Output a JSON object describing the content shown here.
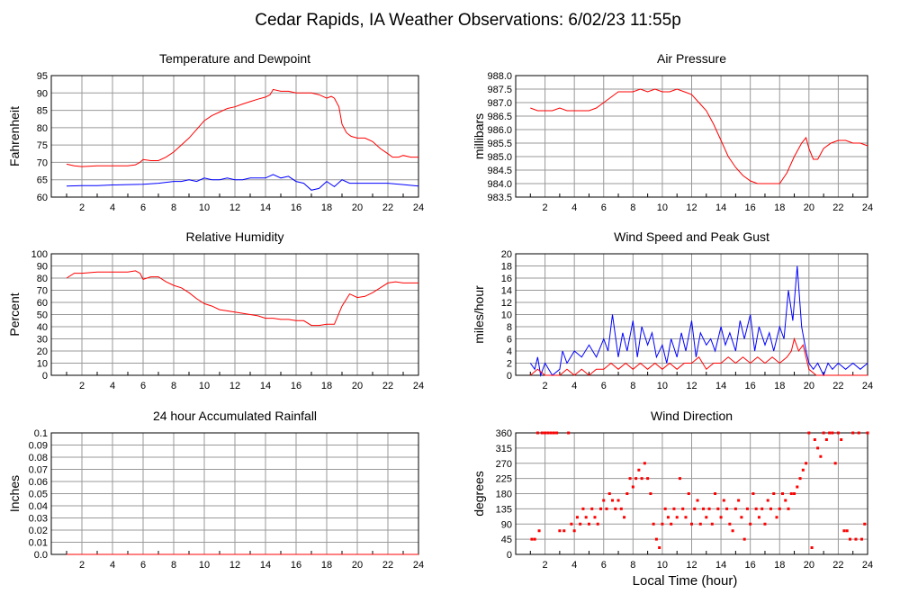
{
  "page_title": "Cedar Rapids, IA Weather Observations: 6/02/23 11:55p",
  "x_axis_label": "Local Time (hour)",
  "colors": {
    "red": "#ff0000",
    "blue": "#0000ff",
    "grid": "#999999"
  },
  "chart_data": [
    {
      "id": "temperature",
      "type": "line",
      "title": "Temperature and Dewpoint",
      "xlabel": "",
      "ylabel": "Fahrenheit",
      "xlim": [
        0,
        24
      ],
      "ylim": [
        60,
        95
      ],
      "xticks": [
        "2",
        "4",
        "6",
        "8",
        "10",
        "12",
        "14",
        "16",
        "18",
        "20",
        "22",
        "24"
      ],
      "yticks": [
        "60",
        "65",
        "70",
        "75",
        "80",
        "85",
        "90",
        "95"
      ],
      "grid": true,
      "series": [
        {
          "color": "#ff0000",
          "x": [
            1,
            1.5,
            2,
            3,
            4,
            5,
            5.5,
            5.8,
            6,
            6.5,
            7,
            7.5,
            8,
            8.5,
            9,
            9.5,
            10,
            10.5,
            11,
            11.5,
            12,
            12.5,
            13,
            13.5,
            14,
            14.3,
            14.5,
            15,
            15.5,
            16,
            16.5,
            17,
            17.5,
            18,
            18.3,
            18.5,
            18.8,
            19,
            19.3,
            19.6,
            20,
            20.5,
            21,
            21.5,
            22,
            22.3,
            22.7,
            23,
            23.5,
            24
          ],
          "y": [
            69.5,
            69,
            68.8,
            69,
            69,
            69,
            69.3,
            70,
            70.8,
            70.5,
            70.5,
            71.5,
            73,
            75,
            77,
            79.5,
            82,
            83.5,
            84.5,
            85.5,
            86,
            86.8,
            87.5,
            88.2,
            88.8,
            89.5,
            91,
            90.5,
            90.5,
            90,
            90,
            90,
            89.5,
            88.5,
            89,
            88.5,
            86,
            81,
            78.5,
            77.5,
            77,
            77,
            76,
            74,
            72.5,
            71.5,
            71.5,
            72,
            71.5,
            71.5
          ]
        },
        {
          "color": "#0000ff",
          "x": [
            1,
            2,
            3,
            4,
            5,
            6,
            7,
            8,
            8.5,
            9,
            9.5,
            10,
            10.5,
            11,
            11.5,
            12,
            12.5,
            13,
            13.5,
            14,
            14.5,
            15,
            15.5,
            16,
            16.5,
            17,
            17.5,
            18,
            18.5,
            19,
            19.5,
            20,
            21,
            22,
            23,
            24
          ],
          "y": [
            63.2,
            63.3,
            63.3,
            63.5,
            63.6,
            63.7,
            64,
            64.5,
            64.5,
            65,
            64.5,
            65.5,
            65,
            65,
            65.5,
            65,
            65,
            65.5,
            65.5,
            65.5,
            66.5,
            65.5,
            66,
            64.5,
            64,
            62,
            62.5,
            64.5,
            63,
            65,
            64,
            64,
            64,
            64,
            63.6,
            63.2
          ]
        }
      ]
    },
    {
      "id": "pressure",
      "type": "line",
      "title": "Air Pressure",
      "xlabel": "",
      "ylabel": "millibars",
      "xlim": [
        0,
        24
      ],
      "ylim": [
        983.5,
        988.0
      ],
      "xticks": [
        "2",
        "4",
        "6",
        "8",
        "10",
        "12",
        "14",
        "16",
        "18",
        "20",
        "22",
        "24"
      ],
      "yticks": [
        "983.5",
        "984.0",
        "984.5",
        "985.0",
        "985.5",
        "986.0",
        "986.5",
        "987.0",
        "987.5",
        "988.0"
      ],
      "grid": true,
      "series": [
        {
          "color": "#ff0000",
          "x": [
            1,
            1.5,
            2,
            2.5,
            3,
            3.5,
            4,
            5,
            5.5,
            6,
            6.5,
            7,
            7.5,
            8,
            8.5,
            9,
            9.5,
            10,
            10.5,
            11,
            11.5,
            12,
            12.5,
            13,
            13.5,
            14,
            14.5,
            15,
            15.5,
            16,
            16.5,
            17,
            17.5,
            18,
            18.5,
            19,
            19.5,
            19.8,
            20,
            20.3,
            20.6,
            21,
            21.5,
            22,
            22.5,
            23,
            23.5,
            24
          ],
          "y": [
            986.8,
            986.7,
            986.7,
            986.7,
            986.8,
            986.7,
            986.7,
            986.7,
            986.8,
            987.0,
            987.2,
            987.4,
            987.4,
            987.4,
            987.5,
            987.4,
            987.5,
            987.4,
            987.4,
            987.5,
            987.4,
            987.3,
            987.0,
            986.7,
            986.2,
            985.6,
            985.0,
            984.6,
            984.3,
            984.1,
            984.0,
            984.0,
            984.0,
            984.0,
            984.4,
            985.0,
            985.5,
            985.7,
            985.3,
            984.9,
            984.9,
            985.3,
            985.5,
            985.6,
            985.6,
            985.5,
            985.5,
            985.4
          ]
        }
      ]
    },
    {
      "id": "humidity",
      "type": "line",
      "title": "Relative Humidity",
      "xlabel": "",
      "ylabel": "Percent",
      "xlim": [
        0,
        24
      ],
      "ylim": [
        0,
        100
      ],
      "xticks": [
        "2",
        "4",
        "6",
        "8",
        "10",
        "12",
        "14",
        "16",
        "18",
        "20",
        "22",
        "24"
      ],
      "yticks": [
        "0",
        "10",
        "20",
        "30",
        "40",
        "50",
        "60",
        "70",
        "80",
        "90",
        "100"
      ],
      "grid": true,
      "series": [
        {
          "color": "#ff0000",
          "x": [
            1,
            1.5,
            2,
            3,
            4,
            5,
            5.5,
            5.8,
            6,
            6.5,
            7,
            7.5,
            8,
            8.5,
            9,
            9.5,
            10,
            10.5,
            11,
            11.5,
            12,
            12.5,
            13,
            13.5,
            14,
            14.5,
            15,
            15.5,
            16,
            16.5,
            17,
            17.5,
            18,
            18.5,
            19,
            19.5,
            20,
            20.5,
            21,
            21.5,
            22,
            22.5,
            23,
            24
          ],
          "y": [
            80,
            84,
            84,
            85,
            85,
            85,
            86,
            84,
            79,
            81,
            81,
            77,
            74,
            72,
            68,
            63,
            59,
            57,
            54,
            53,
            52,
            51,
            50,
            49,
            47,
            47,
            46,
            46,
            45,
            45,
            41,
            41,
            42,
            42,
            57,
            67,
            64,
            65,
            68,
            72,
            76,
            77,
            76,
            76
          ]
        }
      ]
    },
    {
      "id": "wind",
      "type": "line",
      "title": "Wind Speed and Peak Gust",
      "xlabel": "",
      "ylabel": "miles/hour",
      "xlim": [
        0,
        24
      ],
      "ylim": [
        0,
        20
      ],
      "xticks": [
        "2",
        "4",
        "6",
        "8",
        "10",
        "12",
        "14",
        "16",
        "18",
        "20",
        "22",
        "24"
      ],
      "yticks": [
        "0",
        "2",
        "4",
        "6",
        "8",
        "10",
        "12",
        "14",
        "16",
        "18",
        "20"
      ],
      "grid": true,
      "series": [
        {
          "color": "#0000ff",
          "x": [
            1,
            1.3,
            1.5,
            1.7,
            2,
            2.5,
            3,
            3.2,
            3.5,
            4,
            4.5,
            5,
            5.5,
            6,
            6.3,
            6.6,
            7,
            7.3,
            7.6,
            8,
            8.3,
            8.6,
            9,
            9.3,
            9.6,
            10,
            10.3,
            10.6,
            11,
            11.3,
            11.6,
            12,
            12.3,
            12.6,
            13,
            13.3,
            13.6,
            14,
            14.3,
            14.6,
            15,
            15.3,
            15.6,
            16,
            16.3,
            16.6,
            17,
            17.3,
            17.6,
            18,
            18.3,
            18.6,
            18.9,
            19.2,
            19.5,
            19.8,
            20,
            20.3,
            20.6,
            21,
            21.3,
            21.6,
            22,
            22.5,
            23,
            23.5,
            24
          ],
          "y": [
            2,
            1,
            3,
            0,
            2,
            0,
            1,
            4,
            2,
            4,
            3,
            5,
            3,
            6,
            4,
            10,
            3,
            7,
            4,
            9,
            3,
            8,
            5,
            7,
            3,
            5,
            2,
            6,
            3,
            7,
            4,
            9,
            3,
            7,
            5,
            6,
            4,
            8,
            5,
            7,
            4,
            9,
            6,
            10,
            4,
            8,
            5,
            7,
            4,
            8,
            6,
            14,
            9,
            18,
            8,
            4,
            2,
            1,
            2,
            0,
            2,
            1,
            2,
            1,
            2,
            1,
            2
          ]
        },
        {
          "color": "#ff0000",
          "x": [
            1,
            1.5,
            2,
            2.5,
            3,
            3.5,
            4,
            4.5,
            5,
            5.5,
            6,
            6.5,
            7,
            7.5,
            8,
            8.5,
            9,
            9.5,
            10,
            10.5,
            11,
            11.5,
            12,
            12.5,
            13,
            13.5,
            14,
            14.5,
            15,
            15.5,
            16,
            16.5,
            17,
            17.5,
            18,
            18.5,
            18.8,
            19,
            19.3,
            19.6,
            20,
            20.5,
            21,
            21.5,
            22,
            23,
            24
          ],
          "y": [
            0,
            1,
            0,
            0,
            0,
            1,
            0,
            1,
            0,
            1,
            1,
            2,
            1,
            2,
            1,
            2,
            1,
            2,
            1,
            2,
            1,
            2,
            2,
            3,
            1,
            2,
            2,
            3,
            2,
            3,
            2,
            3,
            2,
            3,
            2,
            3,
            4,
            6,
            4,
            5,
            1,
            0,
            0,
            0,
            0,
            0,
            0
          ]
        }
      ]
    },
    {
      "id": "rainfall",
      "type": "line",
      "title": "24 hour Accumulated Rainfall",
      "xlabel": "",
      "ylabel": "Inches",
      "xlim": [
        0,
        24
      ],
      "ylim": [
        0,
        0.1
      ],
      "xticks": [
        "2",
        "4",
        "6",
        "8",
        "10",
        "12",
        "14",
        "16",
        "18",
        "20",
        "22",
        "24"
      ],
      "yticks": [
        "0.0",
        "0.01",
        "0.02",
        "0.03",
        "0.04",
        "0.05",
        "0.06",
        "0.07",
        "0.08",
        "0.09",
        "0.1"
      ],
      "grid": true,
      "series": [
        {
          "color": "#ff0000",
          "x": [
            1,
            24
          ],
          "y": [
            0,
            0
          ]
        }
      ]
    },
    {
      "id": "direction",
      "type": "scatter",
      "title": "Wind Direction",
      "xlabel": "Local Time (hour)",
      "ylabel": "degrees",
      "xlim": [
        0,
        24
      ],
      "ylim": [
        0,
        360
      ],
      "xticks": [
        "2",
        "4",
        "6",
        "8",
        "10",
        "12",
        "14",
        "16",
        "18",
        "20",
        "22",
        "24"
      ],
      "yticks": [
        "0",
        "45",
        "90",
        "135",
        "180",
        "225",
        "270",
        "315",
        "360"
      ],
      "grid": true,
      "series": [
        {
          "color": "#ff0000",
          "x": [
            1.1,
            1.3,
            1.5,
            1.6,
            1.8,
            2,
            2.2,
            2.4,
            2.6,
            2.8,
            3,
            3.3,
            3.6,
            3.8,
            4,
            4.2,
            4.4,
            4.6,
            4.8,
            5,
            5.2,
            5.4,
            5.6,
            5.8,
            6,
            6.2,
            6.4,
            6.6,
            6.8,
            7,
            7.2,
            7.4,
            7.6,
            7.8,
            8,
            8.2,
            8.4,
            8.6,
            8.8,
            9,
            9.2,
            9.4,
            9.6,
            9.8,
            10,
            10.2,
            10.4,
            10.6,
            10.8,
            11,
            11.2,
            11.4,
            11.6,
            11.8,
            12,
            12.2,
            12.4,
            12.6,
            12.8,
            13,
            13.2,
            13.4,
            13.6,
            13.8,
            14,
            14.2,
            14.4,
            14.6,
            14.8,
            15,
            15.2,
            15.4,
            15.6,
            15.8,
            16,
            16.2,
            16.4,
            16.6,
            16.8,
            17,
            17.2,
            17.4,
            17.6,
            17.8,
            18,
            18.2,
            18.4,
            18.6,
            18.8,
            19,
            19.2,
            19.4,
            19.6,
            19.8,
            20,
            20.2,
            20.4,
            20.6,
            20.8,
            21,
            21.2,
            21.4,
            21.6,
            21.8,
            22,
            22.2,
            22.4,
            22.6,
            22.8,
            23,
            23.2,
            23.4,
            23.6,
            23.8,
            24
          ],
          "y": [
            45,
            45,
            360,
            70,
            360,
            360,
            360,
            360,
            360,
            360,
            70,
            70,
            360,
            90,
            70,
            110,
            90,
            135,
            110,
            90,
            135,
            110,
            90,
            135,
            160,
            135,
            180,
            160,
            135,
            160,
            135,
            110,
            180,
            225,
            200,
            225,
            250,
            225,
            270,
            225,
            180,
            90,
            45,
            20,
            90,
            135,
            110,
            90,
            135,
            110,
            225,
            135,
            110,
            180,
            90,
            135,
            160,
            90,
            135,
            110,
            135,
            90,
            180,
            135,
            110,
            160,
            135,
            90,
            70,
            135,
            160,
            110,
            45,
            135,
            90,
            180,
            135,
            110,
            135,
            90,
            160,
            135,
            180,
            110,
            135,
            180,
            160,
            135,
            180,
            180,
            200,
            225,
            250,
            270,
            360,
            20,
            340,
            315,
            290,
            360,
            340,
            360,
            360,
            270,
            360,
            340,
            70,
            70,
            45,
            360,
            45,
            360,
            45,
            90,
            360
          ]
        }
      ]
    }
  ]
}
